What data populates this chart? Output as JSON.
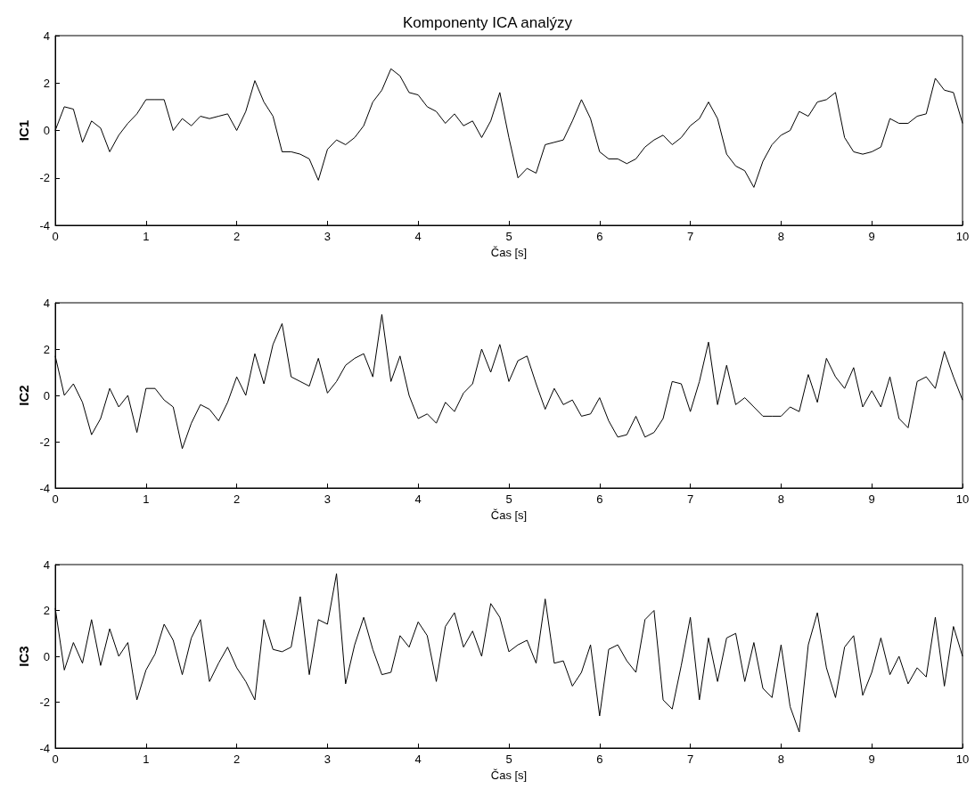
{
  "chart_data": [
    {
      "type": "line",
      "title": "Komponenty ICA analýzy",
      "xlabel": "Čas [s]",
      "ylabel": "IC1",
      "xlim": [
        0,
        10
      ],
      "xticks": [
        0,
        1,
        2,
        3,
        4,
        5,
        6,
        7,
        8,
        9,
        10
      ],
      "ylim": [
        -4,
        4
      ],
      "yticks": [
        -4,
        -2,
        0,
        2,
        4
      ],
      "x": [
        0,
        0.1,
        0.2,
        0.3,
        0.4,
        0.5,
        0.6,
        0.7,
        0.8,
        0.9,
        1,
        1.1,
        1.2,
        1.3,
        1.4,
        1.5,
        1.6,
        1.7,
        1.8,
        1.9,
        2,
        2.1,
        2.2,
        2.3,
        2.4,
        2.5,
        2.6,
        2.7,
        2.8,
        2.9,
        3,
        3.1,
        3.2,
        3.3,
        3.4,
        3.5,
        3.6,
        3.7,
        3.8,
        3.9,
        4,
        4.1,
        4.2,
        4.3,
        4.4,
        4.5,
        4.6,
        4.7,
        4.8,
        4.9,
        5,
        5.1,
        5.2,
        5.3,
        5.4,
        5.5,
        5.6,
        5.7,
        5.8,
        5.9,
        6,
        6.1,
        6.2,
        6.3,
        6.4,
        6.5,
        6.6,
        6.7,
        6.8,
        6.9,
        7,
        7.1,
        7.2,
        7.3,
        7.4,
        7.5,
        7.6,
        7.7,
        7.8,
        7.9,
        8,
        8.1,
        8.2,
        8.3,
        8.4,
        8.5,
        8.6,
        8.7,
        8.8,
        8.9,
        9,
        9.1,
        9.2,
        9.3,
        9.4,
        9.5,
        9.6,
        9.7,
        9.8,
        9.9,
        10
      ],
      "series": [
        {
          "color": "#000000",
          "values": [
            0.0,
            1.0,
            0.9,
            -0.5,
            0.4,
            0.1,
            -0.9,
            -0.2,
            0.3,
            0.7,
            1.3,
            1.3,
            1.3,
            0.0,
            0.5,
            0.2,
            0.6,
            0.5,
            0.6,
            0.7,
            0.0,
            0.8,
            2.1,
            1.2,
            0.6,
            -0.9,
            -0.9,
            -1.0,
            -1.2,
            -2.1,
            -0.8,
            -0.4,
            -0.6,
            -0.3,
            0.2,
            1.2,
            1.7,
            2.6,
            2.3,
            1.6,
            1.5,
            1.0,
            0.8,
            0.3,
            0.7,
            0.2,
            0.4,
            -0.3,
            0.4,
            1.6,
            -0.3,
            -2.0,
            -1.6,
            -1.8,
            -0.6,
            -0.5,
            -0.4,
            0.4,
            1.3,
            0.5,
            -0.9,
            -1.2,
            -1.2,
            -1.4,
            -1.2,
            -0.7,
            -0.4,
            -0.2,
            -0.6,
            -0.3,
            0.2,
            0.5,
            1.2,
            0.5,
            -1.0,
            -1.5,
            -1.7,
            -2.4,
            -1.3,
            -0.6,
            -0.2,
            0.0,
            0.8,
            0.6,
            1.2,
            1.3,
            1.6,
            -0.3,
            -0.9,
            -1.0,
            -0.9,
            -0.7,
            0.5,
            0.3,
            0.3,
            0.6,
            0.7,
            2.2,
            1.7,
            1.6,
            0.3
          ]
        }
      ]
    },
    {
      "type": "line",
      "xlabel": "Čas [s]",
      "ylabel": "IC2",
      "xlim": [
        0,
        10
      ],
      "xticks": [
        0,
        1,
        2,
        3,
        4,
        5,
        6,
        7,
        8,
        9,
        10
      ],
      "ylim": [
        -4,
        4
      ],
      "yticks": [
        -4,
        -2,
        0,
        2,
        4
      ],
      "x": [
        0,
        0.1,
        0.2,
        0.3,
        0.4,
        0.5,
        0.6,
        0.7,
        0.8,
        0.9,
        1,
        1.1,
        1.2,
        1.3,
        1.4,
        1.5,
        1.6,
        1.7,
        1.8,
        1.9,
        2,
        2.1,
        2.2,
        2.3,
        2.4,
        2.5,
        2.6,
        2.7,
        2.8,
        2.9,
        3,
        3.1,
        3.2,
        3.3,
        3.4,
        3.5,
        3.6,
        3.7,
        3.8,
        3.9,
        4,
        4.1,
        4.2,
        4.3,
        4.4,
        4.5,
        4.6,
        4.7,
        4.8,
        4.9,
        5,
        5.1,
        5.2,
        5.3,
        5.4,
        5.5,
        5.6,
        5.7,
        5.8,
        5.9,
        6,
        6.1,
        6.2,
        6.3,
        6.4,
        6.5,
        6.6,
        6.7,
        6.8,
        6.9,
        7,
        7.1,
        7.2,
        7.3,
        7.4,
        7.5,
        7.6,
        7.7,
        7.8,
        7.9,
        8,
        8.1,
        8.2,
        8.3,
        8.4,
        8.5,
        8.6,
        8.7,
        8.8,
        8.9,
        9,
        9.1,
        9.2,
        9.3,
        9.4,
        9.5,
        9.6,
        9.7,
        9.8,
        9.9,
        10
      ],
      "series": [
        {
          "color": "#000000",
          "values": [
            1.7,
            0.0,
            0.5,
            -0.3,
            -1.7,
            -1.0,
            0.3,
            -0.5,
            0.0,
            -1.6,
            0.3,
            0.3,
            -0.2,
            -0.5,
            -2.3,
            -1.2,
            -0.4,
            -0.6,
            -1.1,
            -0.3,
            0.8,
            0.0,
            1.8,
            0.5,
            2.2,
            3.1,
            0.8,
            0.6,
            0.4,
            1.6,
            0.1,
            0.6,
            1.3,
            1.6,
            1.8,
            0.8,
            3.5,
            0.6,
            1.7,
            0.0,
            -1.0,
            -0.8,
            -1.2,
            -0.3,
            -0.7,
            0.1,
            0.5,
            2.0,
            1.0,
            2.2,
            0.6,
            1.5,
            1.7,
            0.5,
            -0.6,
            0.3,
            -0.4,
            -0.2,
            -0.9,
            -0.8,
            -0.1,
            -1.1,
            -1.8,
            -1.7,
            -0.9,
            -1.8,
            -1.6,
            -1.0,
            0.6,
            0.5,
            -0.7,
            0.6,
            2.3,
            -0.4,
            1.3,
            -0.4,
            -0.1,
            -0.5,
            -0.9,
            -0.9,
            -0.9,
            -0.5,
            -0.7,
            0.9,
            -0.3,
            1.6,
            0.8,
            0.3,
            1.2,
            -0.5,
            0.2,
            -0.5,
            0.8,
            -1.0,
            -1.4,
            0.6,
            0.8,
            0.3,
            1.9,
            0.8,
            -0.2
          ]
        }
      ]
    },
    {
      "type": "line",
      "xlabel": "Čas [s]",
      "ylabel": "IC3",
      "xlim": [
        0,
        10
      ],
      "xticks": [
        0,
        1,
        2,
        3,
        4,
        5,
        6,
        7,
        8,
        9,
        10
      ],
      "ylim": [
        -4,
        4
      ],
      "yticks": [
        -4,
        -2,
        0,
        2,
        4
      ],
      "x": [
        0,
        0.1,
        0.2,
        0.3,
        0.4,
        0.5,
        0.6,
        0.7,
        0.8,
        0.9,
        1,
        1.1,
        1.2,
        1.3,
        1.4,
        1.5,
        1.6,
        1.7,
        1.8,
        1.9,
        2,
        2.1,
        2.2,
        2.3,
        2.4,
        2.5,
        2.6,
        2.7,
        2.8,
        2.9,
        3,
        3.1,
        3.2,
        3.3,
        3.4,
        3.5,
        3.6,
        3.7,
        3.8,
        3.9,
        4,
        4.1,
        4.2,
        4.3,
        4.4,
        4.5,
        4.6,
        4.7,
        4.8,
        4.9,
        5,
        5.1,
        5.2,
        5.3,
        5.4,
        5.5,
        5.6,
        5.7,
        5.8,
        5.9,
        6,
        6.1,
        6.2,
        6.3,
        6.4,
        6.5,
        6.6,
        6.7,
        6.8,
        6.9,
        7,
        7.1,
        7.2,
        7.3,
        7.4,
        7.5,
        7.6,
        7.7,
        7.8,
        7.9,
        8,
        8.1,
        8.2,
        8.3,
        8.4,
        8.5,
        8.6,
        8.7,
        8.8,
        8.9,
        9,
        9.1,
        9.2,
        9.3,
        9.4,
        9.5,
        9.6,
        9.7,
        9.8,
        9.9,
        10
      ],
      "series": [
        {
          "color": "#000000",
          "values": [
            2.1,
            -0.6,
            0.6,
            -0.3,
            1.6,
            -0.4,
            1.2,
            0.0,
            0.6,
            -1.9,
            -0.6,
            0.1,
            1.4,
            0.7,
            -0.8,
            0.8,
            1.6,
            -1.1,
            -0.3,
            0.4,
            -0.5,
            -1.1,
            -1.9,
            1.6,
            0.3,
            0.2,
            0.4,
            2.6,
            -0.8,
            1.6,
            1.4,
            3.6,
            -1.2,
            0.5,
            1.7,
            0.3,
            -0.8,
            -0.7,
            0.9,
            0.4,
            1.5,
            0.9,
            -1.1,
            1.3,
            1.9,
            0.4,
            1.1,
            0.0,
            2.3,
            1.7,
            0.2,
            0.5,
            0.7,
            -0.3,
            2.5,
            -0.3,
            -0.2,
            -1.3,
            -0.7,
            0.5,
            -2.6,
            0.3,
            0.5,
            -0.2,
            -0.7,
            1.6,
            2.0,
            -1.9,
            -2.3,
            -0.4,
            1.7,
            -1.9,
            0.8,
            -1.1,
            0.8,
            1.0,
            -1.1,
            0.6,
            -1.4,
            -1.8,
            0.5,
            -2.2,
            -3.3,
            0.5,
            1.9,
            -0.5,
            -1.8,
            0.4,
            0.9,
            -1.7,
            -0.7,
            0.8,
            -0.8,
            0.0,
            -1.2,
            -0.5,
            -0.9,
            1.7,
            -1.3,
            1.3,
            0.0
          ]
        }
      ]
    }
  ]
}
